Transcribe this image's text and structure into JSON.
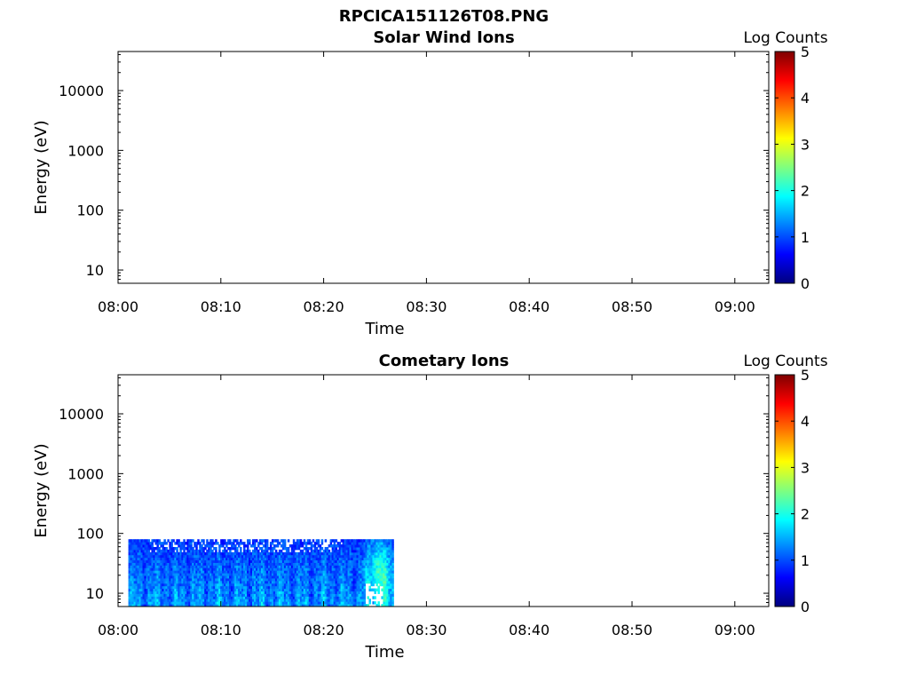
{
  "figure_title": "RPCICA151126T08.PNG",
  "colors": {
    "axis": "#000000",
    "colormap": [
      "#00007f",
      "#0000ff",
      "#007fff",
      "#00ffff",
      "#7fff7f",
      "#ffff00",
      "#ff7f00",
      "#ff0000",
      "#7f0000"
    ]
  },
  "chart_data": [
    {
      "type": "heatmap",
      "title": "Solar Wind Ions",
      "xlabel": "Time",
      "ylabel": "Energy (eV)",
      "x_ticks": [
        "08:00",
        "08:10",
        "08:20",
        "08:30",
        "08:40",
        "08:50",
        "09:00"
      ],
      "x_range_minutes": [
        0,
        63.3
      ],
      "y_scale": "log",
      "y_ticks": [
        10,
        100,
        1000,
        10000
      ],
      "y_tick_labels": [
        "10",
        "100",
        "1000",
        "10000"
      ],
      "y_range": [
        6,
        45000
      ],
      "colorbar": {
        "label": "Log Counts",
        "ticks": [
          "0",
          "1",
          "2",
          "3",
          "4",
          "5"
        ],
        "range": [
          0,
          5
        ]
      },
      "data_coverage": null
    },
    {
      "type": "heatmap",
      "title": "Cometary Ions",
      "xlabel": "Time",
      "ylabel": "Energy (eV)",
      "x_ticks": [
        "08:00",
        "08:10",
        "08:20",
        "08:30",
        "08:40",
        "08:50",
        "09:00"
      ],
      "x_range_minutes": [
        0,
        63.3
      ],
      "y_scale": "log",
      "y_ticks": [
        10,
        100,
        1000,
        10000
      ],
      "y_tick_labels": [
        "10",
        "100",
        "1000",
        "10000"
      ],
      "y_range": [
        6,
        45000
      ],
      "colorbar": {
        "label": "Log Counts",
        "ticks": [
          "0",
          "1",
          "2",
          "3",
          "4",
          "5"
        ],
        "range": [
          0,
          5
        ]
      },
      "data_coverage": {
        "time_start": "08:01",
        "time_end": "08:26.8",
        "energy_min_eV": 6,
        "energy_max_eV": 80,
        "typical_log_counts": [
          0.5,
          2.2
        ],
        "feature": "enhancement near 08:25 reaching ~2.5 log counts, with gaps near 10 eV"
      }
    }
  ]
}
